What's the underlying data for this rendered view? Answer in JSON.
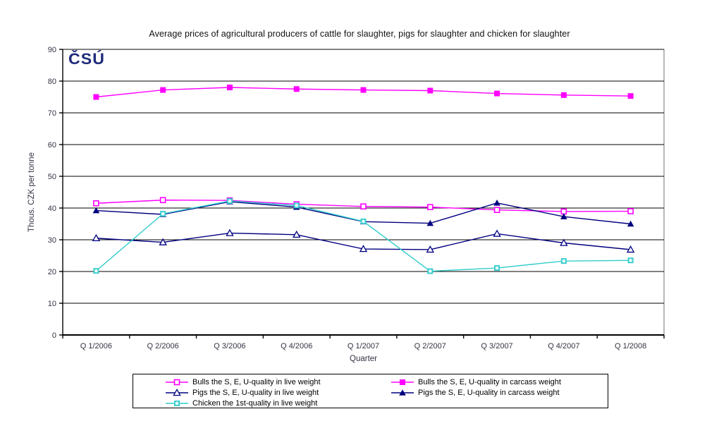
{
  "logo": {
    "text": "ČSÚ",
    "color": "#1e2a7a"
  },
  "chart_data": {
    "type": "line",
    "title": "Average prices of agricultural producers of cattle for slaughter, pigs for slaughter and chicken for slaughter",
    "xlabel": "Quarter",
    "ylabel": "Thous. CZK per tonne",
    "ylim": [
      0,
      90
    ],
    "ytick_step": 10,
    "grid": true,
    "legend_position": "bottom",
    "categories": [
      "Q 1/2006",
      "Q 2/2006",
      "Q 3/2006",
      "Q 4/2006",
      "Q 1/2007",
      "Q 2/2007",
      "Q 3/2007",
      "Q 4/2007",
      "Q 1/2008"
    ],
    "series": [
      {
        "name": "Bulls the S, E, U-quality in live weight",
        "color": "#FF00FF",
        "marker": "square-open",
        "values": [
          41.5,
          42.5,
          42.4,
          41.2,
          40.5,
          40.3,
          39.4,
          38.9,
          39.0
        ]
      },
      {
        "name": "Bulls the S, E, U-quality in carcass weight",
        "color": "#FF00FF",
        "marker": "square-filled",
        "values": [
          75.0,
          77.2,
          78.0,
          77.5,
          77.2,
          77.0,
          76.1,
          75.6,
          75.3
        ]
      },
      {
        "name": "Pigs the S, E, U-quality in live weight",
        "color": "#000080",
        "marker": "triangle-open",
        "values": [
          30.5,
          29.2,
          32.1,
          31.6,
          27.1,
          26.9,
          31.9,
          29.0,
          26.9
        ]
      },
      {
        "name": "Pigs the S, E, U-quality in carcass weight",
        "color": "#000080",
        "marker": "triangle-filled",
        "values": [
          39.2,
          38.0,
          42.0,
          40.3,
          35.7,
          35.2,
          41.6,
          37.3,
          35.0
        ]
      },
      {
        "name": "Chicken the 1st-quality in live weight",
        "color": "#33CCCC",
        "marker": "star-square",
        "values": [
          20.2,
          38.2,
          42.2,
          40.8,
          35.8,
          20.1,
          21.1,
          23.3,
          23.5
        ]
      }
    ]
  },
  "colors": {
    "axis_text": "#333344",
    "grid": "#000000",
    "axis_line": "#000000",
    "plot_border": "#707070"
  }
}
